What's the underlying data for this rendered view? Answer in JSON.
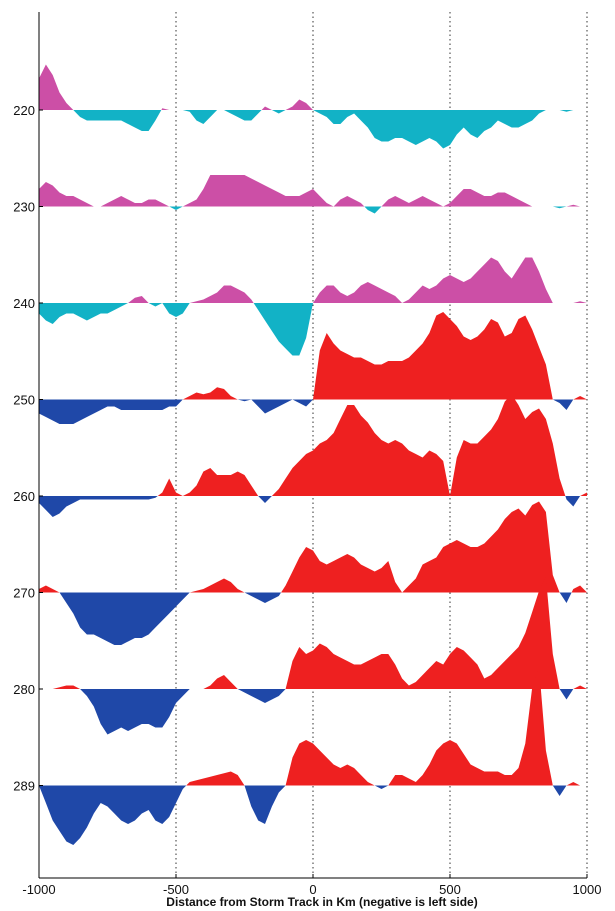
{
  "chart_data": {
    "type": "area",
    "title": "",
    "xlabel": "Distance from Storm Track in Km (negative is left side)",
    "ylabel": "",
    "xlim": [
      -1000,
      1000
    ],
    "x_ticks": [
      -1000,
      -500,
      0,
      500,
      1000
    ],
    "y_ticks": [
      220,
      230,
      240,
      250,
      260,
      270,
      280,
      289
    ],
    "grid": "dotted vertical lines at -500, 0, 500, 1000",
    "colors": {
      "positive_upper": "#cc4fa6",
      "negative_upper": "#12b2c6",
      "positive_lower": "#ee2020",
      "negative_lower": "#1f48a8"
    },
    "x": [
      -1000,
      -975,
      -950,
      -925,
      -900,
      -875,
      -850,
      -825,
      -800,
      -775,
      -750,
      -725,
      -700,
      -675,
      -650,
      -625,
      -600,
      -575,
      -550,
      -525,
      -500,
      -475,
      -450,
      -425,
      -400,
      -375,
      -350,
      -325,
      -300,
      -275,
      -250,
      -225,
      -200,
      -175,
      -150,
      -125,
      -100,
      -75,
      -50,
      -25,
      0,
      25,
      50,
      75,
      100,
      125,
      150,
      175,
      200,
      225,
      250,
      275,
      300,
      325,
      350,
      375,
      400,
      425,
      450,
      475,
      500,
      525,
      550,
      575,
      600,
      625,
      650,
      675,
      700,
      725,
      750,
      775,
      800,
      825,
      850,
      875,
      900,
      925,
      950,
      975,
      1000
    ],
    "series": [
      {
        "level": "220",
        "palette": "upper",
        "values": [
          0.9,
          1.3,
          1.0,
          0.5,
          0.2,
          0.0,
          -0.2,
          -0.3,
          -0.3,
          -0.3,
          -0.3,
          -0.3,
          -0.3,
          -0.4,
          -0.5,
          -0.6,
          -0.6,
          -0.3,
          0.05,
          0.0,
          0.0,
          0.0,
          -0.05,
          -0.3,
          -0.4,
          -0.2,
          0.0,
          0.0,
          -0.1,
          -0.2,
          -0.3,
          -0.3,
          -0.1,
          0.1,
          0.0,
          -0.1,
          0.0,
          0.1,
          0.3,
          0.2,
          0.0,
          -0.1,
          -0.2,
          -0.4,
          -0.4,
          -0.2,
          -0.1,
          -0.3,
          -0.5,
          -0.8,
          -0.9,
          -0.9,
          -0.8,
          -0.8,
          -0.9,
          -1.0,
          -0.9,
          -0.8,
          -0.9,
          -1.1,
          -1.0,
          -0.7,
          -0.5,
          -0.7,
          -0.8,
          -0.6,
          -0.5,
          -0.3,
          -0.4,
          -0.5,
          -0.5,
          -0.4,
          -0.3,
          -0.1,
          0.0,
          0.0,
          0.0,
          -0.05,
          0.0,
          0.0,
          0.0
        ]
      },
      {
        "level": "230",
        "palette": "upper",
        "values": [
          0.5,
          0.7,
          0.6,
          0.4,
          0.3,
          0.3,
          0.2,
          0.1,
          0.0,
          0.0,
          0.1,
          0.2,
          0.3,
          0.2,
          0.1,
          0.1,
          0.2,
          0.2,
          0.1,
          0.0,
          -0.1,
          0.0,
          0.1,
          0.2,
          0.5,
          0.9,
          0.9,
          0.9,
          0.9,
          0.9,
          0.9,
          0.8,
          0.7,
          0.6,
          0.5,
          0.4,
          0.3,
          0.3,
          0.3,
          0.4,
          0.5,
          0.3,
          0.1,
          0.0,
          0.2,
          0.3,
          0.2,
          0.1,
          -0.1,
          -0.2,
          0.0,
          0.2,
          0.3,
          0.2,
          0.1,
          0.2,
          0.3,
          0.2,
          0.1,
          0.0,
          0.1,
          0.3,
          0.5,
          0.5,
          0.4,
          0.3,
          0.3,
          0.4,
          0.4,
          0.3,
          0.2,
          0.1,
          0.0,
          0.0,
          0.0,
          0.0,
          -0.05,
          0.0,
          0.05,
          0.0,
          0.0
        ]
      },
      {
        "level": "240",
        "palette": "upper",
        "values": [
          -0.3,
          -0.5,
          -0.6,
          -0.4,
          -0.3,
          -0.3,
          -0.4,
          -0.5,
          -0.4,
          -0.3,
          -0.3,
          -0.2,
          -0.1,
          0.0,
          0.15,
          0.2,
          0.0,
          -0.1,
          0.0,
          -0.3,
          -0.4,
          -0.3,
          0.0,
          0.05,
          0.1,
          0.2,
          0.3,
          0.5,
          0.5,
          0.4,
          0.3,
          0.1,
          -0.2,
          -0.5,
          -0.8,
          -1.1,
          -1.3,
          -1.5,
          -1.5,
          -1.0,
          0.0,
          0.3,
          0.5,
          0.5,
          0.3,
          0.2,
          0.3,
          0.5,
          0.6,
          0.5,
          0.4,
          0.3,
          0.2,
          0.0,
          0.1,
          0.3,
          0.5,
          0.4,
          0.5,
          0.7,
          0.8,
          0.7,
          0.6,
          0.7,
          0.9,
          1.1,
          1.3,
          1.2,
          0.9,
          0.7,
          1.0,
          1.3,
          1.3,
          0.9,
          0.4,
          0.0,
          0.0,
          0.0,
          0.0,
          0.05,
          0.0
        ]
      },
      {
        "level": "250",
        "palette": "lower",
        "values": [
          -0.4,
          -0.5,
          -0.6,
          -0.7,
          -0.7,
          -0.7,
          -0.6,
          -0.5,
          -0.4,
          -0.3,
          -0.2,
          -0.2,
          -0.3,
          -0.3,
          -0.3,
          -0.3,
          -0.3,
          -0.3,
          -0.3,
          -0.2,
          -0.2,
          0.0,
          0.1,
          0.2,
          0.15,
          0.2,
          0.35,
          0.3,
          0.1,
          0.0,
          -0.05,
          0.0,
          -0.2,
          -0.4,
          -0.3,
          -0.2,
          -0.1,
          0.0,
          -0.1,
          -0.2,
          0.0,
          1.4,
          1.9,
          1.6,
          1.4,
          1.3,
          1.2,
          1.2,
          1.1,
          1.0,
          1.0,
          1.1,
          1.1,
          1.1,
          1.2,
          1.4,
          1.6,
          1.9,
          2.4,
          2.5,
          2.3,
          2.1,
          1.8,
          1.7,
          1.8,
          2.0,
          2.3,
          2.2,
          1.8,
          1.9,
          2.3,
          2.4,
          2.0,
          1.5,
          1.0,
          0.0,
          -0.1,
          -0.3,
          0.0,
          0.1,
          0.0
        ]
      },
      {
        "level": "260",
        "palette": "lower",
        "values": [
          -0.2,
          -0.4,
          -0.6,
          -0.5,
          -0.3,
          -0.2,
          -0.1,
          -0.1,
          -0.1,
          -0.1,
          -0.1,
          -0.1,
          -0.1,
          -0.1,
          -0.1,
          -0.1,
          -0.1,
          -0.05,
          0.1,
          0.5,
          0.1,
          0.0,
          0.1,
          0.3,
          0.7,
          0.8,
          0.6,
          0.6,
          0.6,
          0.7,
          0.6,
          0.3,
          0.0,
          -0.2,
          0.0,
          0.2,
          0.5,
          0.8,
          1.0,
          1.2,
          1.3,
          1.5,
          1.6,
          1.8,
          2.2,
          2.6,
          2.6,
          2.3,
          2.1,
          1.8,
          1.6,
          1.5,
          1.6,
          1.5,
          1.3,
          1.2,
          1.1,
          1.3,
          1.2,
          1.0,
          0.0,
          1.1,
          1.6,
          1.5,
          1.5,
          1.7,
          1.9,
          2.2,
          2.7,
          2.9,
          2.6,
          2.2,
          2.4,
          2.5,
          2.2,
          1.5,
          0.5,
          -0.1,
          -0.3,
          0.0,
          0.1
        ]
      },
      {
        "level": "270",
        "palette": "lower",
        "values": [
          0.1,
          0.2,
          0.1,
          0.0,
          -0.3,
          -0.6,
          -1.0,
          -1.2,
          -1.2,
          -1.3,
          -1.4,
          -1.5,
          -1.5,
          -1.4,
          -1.3,
          -1.3,
          -1.2,
          -1.0,
          -0.8,
          -0.6,
          -0.4,
          -0.2,
          0.0,
          0.05,
          0.1,
          0.2,
          0.3,
          0.4,
          0.3,
          0.1,
          0.0,
          -0.1,
          -0.2,
          -0.3,
          -0.2,
          -0.1,
          0.2,
          0.6,
          1.0,
          1.3,
          1.2,
          0.9,
          0.8,
          0.9,
          1.0,
          1.1,
          1.0,
          0.8,
          0.7,
          0.6,
          0.7,
          0.9,
          0.3,
          0.0,
          0.2,
          0.4,
          0.8,
          0.9,
          1.0,
          1.3,
          1.4,
          1.5,
          1.4,
          1.3,
          1.3,
          1.4,
          1.6,
          1.8,
          2.1,
          2.3,
          2.4,
          2.2,
          2.5,
          2.6,
          2.3,
          0.5,
          0.0,
          -0.3,
          0.1,
          0.2,
          0.0
        ]
      },
      {
        "level": "280",
        "palette": "lower",
        "values": [
          0.0,
          0.0,
          0.0,
          0.05,
          0.1,
          0.1,
          0.0,
          -0.2,
          -0.5,
          -1.0,
          -1.3,
          -1.2,
          -1.1,
          -1.2,
          -1.1,
          -1.0,
          -1.0,
          -1.1,
          -1.1,
          -0.8,
          -0.4,
          -0.2,
          0.0,
          0.0,
          0.0,
          0.1,
          0.3,
          0.4,
          0.2,
          0.0,
          -0.1,
          -0.2,
          -0.3,
          -0.4,
          -0.3,
          -0.2,
          0.0,
          0.8,
          1.2,
          1.0,
          1.1,
          1.3,
          1.2,
          1.0,
          0.9,
          0.8,
          0.7,
          0.7,
          0.8,
          0.9,
          1.0,
          1.0,
          0.7,
          0.3,
          0.1,
          0.2,
          0.4,
          0.6,
          0.8,
          0.7,
          1.0,
          1.2,
          1.1,
          0.9,
          0.7,
          0.3,
          0.4,
          0.6,
          0.8,
          1.0,
          1.2,
          1.6,
          2.2,
          2.8,
          3.2,
          1.0,
          0.0,
          -0.3,
          0.0,
          0.1,
          0.0
        ]
      },
      {
        "level": "289",
        "palette": "lower",
        "values": [
          0.0,
          -0.5,
          -1.0,
          -1.3,
          -1.6,
          -1.7,
          -1.5,
          -1.2,
          -0.8,
          -0.5,
          -0.6,
          -0.8,
          -1.0,
          -1.1,
          -1.0,
          -0.8,
          -0.7,
          -1.0,
          -1.1,
          -0.9,
          -0.5,
          -0.1,
          0.1,
          0.15,
          0.2,
          0.25,
          0.3,
          0.35,
          0.4,
          0.3,
          0.0,
          -0.6,
          -1.0,
          -1.1,
          -0.6,
          -0.2,
          0.0,
          0.8,
          1.2,
          1.3,
          1.2,
          1.0,
          0.8,
          0.6,
          0.5,
          0.6,
          0.5,
          0.3,
          0.1,
          0.0,
          -0.1,
          0.0,
          0.3,
          0.3,
          0.2,
          0.1,
          0.3,
          0.6,
          1.0,
          1.2,
          1.3,
          1.2,
          0.9,
          0.6,
          0.5,
          0.4,
          0.4,
          0.4,
          0.3,
          0.3,
          0.5,
          1.2,
          2.8,
          3.4,
          1.0,
          0.0,
          -0.3,
          0.0,
          0.1,
          0.0,
          0.0
        ]
      }
    ]
  }
}
